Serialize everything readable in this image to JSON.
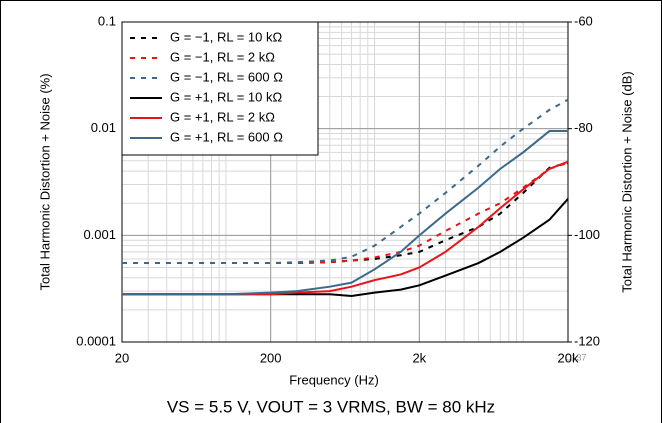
{
  "chart_data": {
    "type": "line",
    "x_label": "Frequency (Hz)",
    "y_label": "Total Harmonic Distortion + Noise (%)",
    "y2_label": "Total Harmonic Distortion + Noise (dB)",
    "annotations": [
      "C137",
      "VS = 5.5 V, VOUT = 3 VRMS, BW = 80 kHz"
    ],
    "x_log": true,
    "y_log": true,
    "grid": true,
    "legend": "upper left",
    "xlim": [
      20,
      20000
    ],
    "xticks": [
      20,
      200,
      {
        "value": 2000,
        "label": "2k"
      },
      {
        "value": 20000,
        "label": "20k"
      }
    ],
    "ylim": [
      0.0001,
      0.1
    ],
    "yticks": [
      0.1,
      0.01,
      0.001,
      0.0001
    ],
    "y2lim": [
      -120,
      -60
    ],
    "y2ticks": [
      -60,
      -80,
      -100,
      -120
    ],
    "x": [
      20,
      30,
      50,
      100,
      200,
      300,
      500,
      700,
      1000,
      1500,
      2000,
      3000,
      5000,
      7000,
      10000,
      15000,
      20000
    ],
    "series": [
      {
        "name": "G = −1, RL = 10 kΩ",
        "color": "#000000",
        "style": "dashed",
        "values": [
          0.00055,
          0.00055,
          0.00055,
          0.00055,
          0.00055,
          0.00055,
          0.00056,
          0.00058,
          0.0006,
          0.00065,
          0.0007,
          0.0009,
          0.0012,
          0.0016,
          0.0025,
          0.0043,
          0.0048
        ]
      },
      {
        "name": "G = −1, RL = 2 kΩ",
        "color": "#e8141a",
        "style": "dashed",
        "values": [
          0.00055,
          0.00055,
          0.00055,
          0.00055,
          0.00055,
          0.00055,
          0.00056,
          0.00058,
          0.00062,
          0.0007,
          0.0008,
          0.0011,
          0.0016,
          0.002,
          0.0028,
          0.0042,
          0.0048
        ]
      },
      {
        "name": "G = −1, RL = 600 Ω",
        "color": "#3b6a8a",
        "style": "dashed",
        "values": [
          0.00055,
          0.00055,
          0.00055,
          0.00055,
          0.00055,
          0.00056,
          0.00058,
          0.00063,
          0.0008,
          0.0012,
          0.0016,
          0.0025,
          0.0045,
          0.0068,
          0.01,
          0.015,
          0.0187
        ]
      },
      {
        "name": "G = +1, RL = 10 kΩ",
        "color": "#000000",
        "style": "solid",
        "values": [
          0.00028,
          0.00028,
          0.00028,
          0.00028,
          0.00028,
          0.00028,
          0.00028,
          0.00027,
          0.00029,
          0.00031,
          0.00034,
          0.00042,
          0.00055,
          0.0007,
          0.00095,
          0.0014,
          0.0022
        ]
      },
      {
        "name": "G = +1, RL = 2 kΩ",
        "color": "#e8141a",
        "style": "solid",
        "values": [
          0.00028,
          0.00028,
          0.00028,
          0.00028,
          0.00028,
          0.00029,
          0.0003,
          0.00033,
          0.00038,
          0.00043,
          0.0005,
          0.0007,
          0.0012,
          0.0018,
          0.0027,
          0.0042,
          0.0049
        ]
      },
      {
        "name": "G = +1, RL = 600 Ω",
        "color": "#3b6a8a",
        "style": "solid",
        "values": [
          0.00028,
          0.00028,
          0.00028,
          0.00028,
          0.00029,
          0.0003,
          0.00033,
          0.00036,
          0.00048,
          0.0007,
          0.001,
          0.0016,
          0.0028,
          0.0042,
          0.006,
          0.0095,
          0.0095
        ]
      }
    ]
  }
}
